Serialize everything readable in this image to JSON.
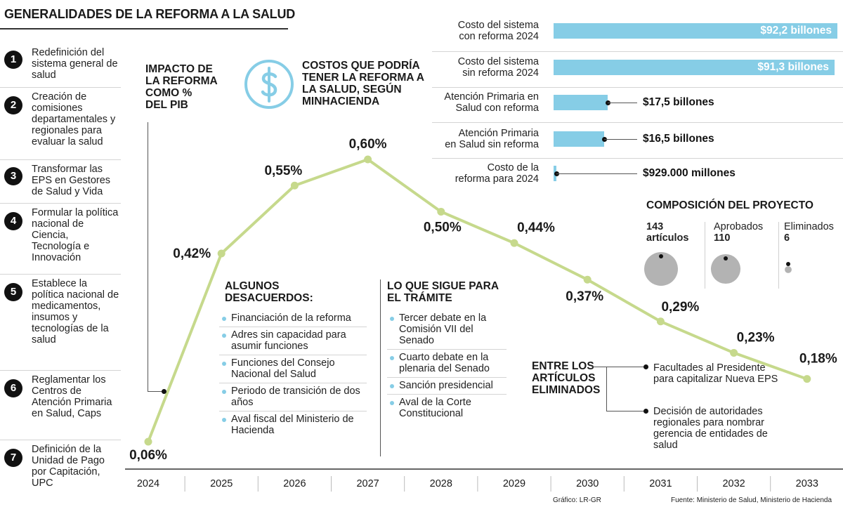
{
  "title": "GENERALIDADES DE LA REFORMA A LA SALUD",
  "steps": [
    {
      "num": "1",
      "text": "Redefinición del sistema general de salud"
    },
    {
      "num": "2",
      "text": "Creación de comisiones departamentales y regionales para evaluar la salud"
    },
    {
      "num": "3",
      "text": "Transformar las EPS en Gestores de Salud y Vida"
    },
    {
      "num": "4",
      "text": "Formular la política nacional de Ciencia, Tecnología e Innovación"
    },
    {
      "num": "5",
      "text": "Establece la política nacional de medicamentos, insumos y tecnologías de la salud"
    },
    {
      "num": "6",
      "text": "Reglamentar los Centros de Atención Primaria en Salud, Caps"
    },
    {
      "num": "7",
      "text": "Definición de la Unidad de Pago por Capitación, UPC"
    }
  ],
  "chart_data": [
    {
      "type": "line",
      "title": "IMPACTO DE LA REFORMA COMO % DEL PIB",
      "x": [
        "2024",
        "2025",
        "2026",
        "2027",
        "2028",
        "2029",
        "2030",
        "2031",
        "2032",
        "2033"
      ],
      "series": [
        {
          "values": [
            0.06,
            0.42,
            0.55,
            0.6,
            0.5,
            0.44,
            0.37,
            0.29,
            0.23,
            0.18
          ]
        }
      ],
      "point_labels": [
        "0,06%",
        "0,42%",
        "0,55%",
        "0,60%",
        "0,50%",
        "0,44%",
        "0,37%",
        "0,29%",
        "0,23%",
        "0,18%"
      ],
      "line_color": "#c6d98c",
      "grid": false
    },
    {
      "type": "bar",
      "orientation": "horizontal",
      "title": "COSTOS QUE PODRÍA TENER LA REFORMA A LA SALUD, SEGÚN MINHACIENDA",
      "categories": [
        "Costo del sistema con reforma 2024",
        "Costo del sistema sin reforma 2024",
        "Atención Primaria en Salud con reforma",
        "Atención Primaria en Salud sin reforma",
        "Costo de la reforma para 2024"
      ],
      "values": [
        92.2,
        91.3,
        17.5,
        16.5,
        0.929
      ],
      "value_unit": "billones",
      "value_labels": [
        "$92,2 billones",
        "$91,3 billones",
        "$17,5 billones",
        "$16,5 billones",
        "$929.000 millones"
      ],
      "bar_color": "#86cde6"
    },
    {
      "type": "bubble",
      "title": "COMPOSICIÓN DEL PROYECTO",
      "categories": [
        "artículos",
        "Aprobados",
        "Eliminados"
      ],
      "values": [
        143,
        110,
        6
      ],
      "value_labels": [
        "143",
        "110",
        "6"
      ],
      "bubble_color": "#b3b3b3"
    }
  ],
  "cost_labels": [
    [
      "Costo del sistema",
      "con reforma 2024"
    ],
    [
      "Costo del sistema",
      "sin reforma 2024"
    ],
    [
      "Atención Primaria en",
      "Salud con reforma"
    ],
    [
      "Atención Primaria",
      "en Salud sin reforma"
    ],
    [
      "Costo de la",
      "reforma para 2024"
    ]
  ],
  "chart_title_lines": [
    "IMPACTO DE",
    "LA REFORMA",
    "COMO %",
    "DEL PIB"
  ],
  "costs_title_lines": [
    "COSTOS QUE PODRÍA",
    "TENER LA REFORMA A",
    "LA SALUD, SEGÚN",
    "MINHACIENDA"
  ],
  "composition": {
    "title": "COMPOSICIÓN DEL PROYECTO",
    "total_num": "143",
    "total_label": "artículos",
    "approved_label": "Aprobados",
    "approved_num": "110",
    "removed_label": "Eliminados",
    "removed_num": "6"
  },
  "disagreements": {
    "title": [
      "ALGUNOS",
      "DESACUERDOS:"
    ],
    "items": [
      "Financiación de la reforma",
      "Adres sin capacidad para asumir funciones",
      "Funciones del Consejo Nacional del Salud",
      "Periodo de transición de dos años",
      "Aval fiscal del Ministerio de Hacienda"
    ]
  },
  "next_steps": {
    "title": [
      "LO QUE SIGUE PARA",
      "EL TRÁMITE"
    ],
    "items": [
      "Tercer debate en la Comisión VII del Senado",
      "Cuarto debate en la plenaria del Senado",
      "Sanción presidencial",
      "Aval de la Corte Constitucional"
    ]
  },
  "removed_articles": {
    "title": [
      "ENTRE LOS",
      "ARTÍCULOS",
      "ELIMINADOS"
    ],
    "items": [
      "Facultades al Presidente para capitalizar Nueva EPS",
      "Decisión de autoridades regionales para nombrar gerencia de entidades de salud"
    ]
  },
  "credits": {
    "graphic": "Gráfico: LR-GR",
    "source": "Fuente: Ministerio de Salud, Ministerio de Hacienda"
  },
  "colors": {
    "accent_blue": "#86cde6",
    "line_green": "#c6d98c",
    "gray_bubble": "#b3b3b3"
  },
  "icons": [
    "dollar-icon"
  ]
}
